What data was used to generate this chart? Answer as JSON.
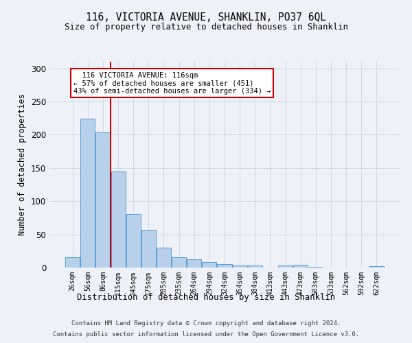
{
  "title_line1": "116, VICTORIA AVENUE, SHANKLIN, PO37 6QL",
  "title_line2": "Size of property relative to detached houses in Shanklin",
  "xlabel": "Distribution of detached houses by size in Shanklin",
  "ylabel": "Number of detached properties",
  "footer_line1": "Contains HM Land Registry data © Crown copyright and database right 2024.",
  "footer_line2": "Contains public sector information licensed under the Open Government Licence v3.0.",
  "annotation_line1": "  116 VICTORIA AVENUE: 116sqm",
  "annotation_line2": "← 57% of detached houses are smaller (451)",
  "annotation_line3": "43% of semi-detached houses are larger (334) →",
  "bar_labels": [
    "26sqm",
    "56sqm",
    "86sqm",
    "115sqm",
    "145sqm",
    "175sqm",
    "205sqm",
    "235sqm",
    "264sqm",
    "294sqm",
    "324sqm",
    "354sqm",
    "384sqm",
    "413sqm",
    "443sqm",
    "473sqm",
    "503sqm",
    "533sqm",
    "562sqm",
    "592sqm",
    "622sqm"
  ],
  "bar_values": [
    15,
    224,
    204,
    145,
    81,
    57,
    30,
    15,
    12,
    8,
    5,
    3,
    3,
    0,
    3,
    4,
    1,
    0,
    0,
    0,
    2
  ],
  "bar_color": "#b8d0ea",
  "bar_edge_color": "#5b9bd5",
  "vline_color": "#cc0000",
  "vline_lw": 1.5,
  "annotation_box_edge_color": "#cc0000",
  "annotation_box_face_color": "#ffffff",
  "grid_color": "#d0d8e8",
  "background_color": "#eef2f8",
  "ylim": [
    0,
    310
  ],
  "yticks": [
    0,
    50,
    100,
    150,
    200,
    250,
    300
  ],
  "vline_pos": 2.5
}
